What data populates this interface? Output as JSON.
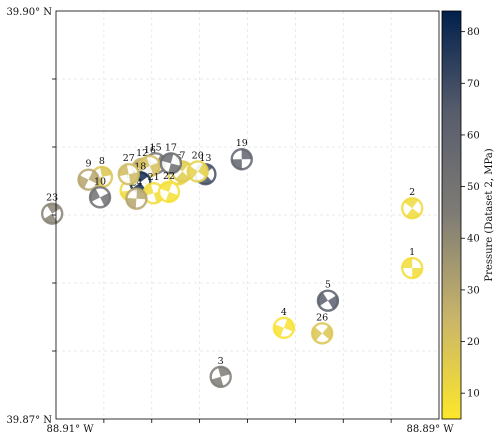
{
  "chart_data": {
    "type": "scatter",
    "subtype": "focal-mechanism beachballs",
    "title": "",
    "xlabel": "",
    "ylabel": "",
    "x_ticks": [
      {
        "value": -88.91,
        "label": "88.91° W"
      },
      {
        "value": -88.89,
        "label": "88.89° W"
      }
    ],
    "y_ticks": [
      {
        "value": 39.87,
        "label": "39.87° N"
      },
      {
        "value": 39.9,
        "label": "39.90° N"
      }
    ],
    "xlim": [
      -88.91,
      -88.89
    ],
    "ylim": [
      39.87,
      39.9
    ],
    "grid": true,
    "colorbar": {
      "label": "Pressure (Dataset 2, MPa)",
      "range": [
        5,
        84
      ],
      "ticks": [
        10,
        20,
        30,
        40,
        50,
        60,
        70,
        80
      ],
      "colormap": [
        "#fde72b",
        "#c8b46a",
        "#7f7c75",
        "#585d6c",
        "#00204c"
      ]
    },
    "points": [
      {
        "id": "1",
        "lon": -88.8914,
        "lat": 39.8811,
        "pressure": 9
      },
      {
        "id": "2",
        "lon": -88.8914,
        "lat": 39.8855,
        "pressure": 10
      },
      {
        "id": "3",
        "lon": -88.9014,
        "lat": 39.8731,
        "pressure": 45
      },
      {
        "id": "4",
        "lon": -88.8981,
        "lat": 39.8767,
        "pressure": 7
      },
      {
        "id": "5",
        "lon": -88.8958,
        "lat": 39.8787,
        "pressure": 63
      },
      {
        "id": "6",
        "lon": -88.9036,
        "lat": 39.888,
        "pressure": 12
      },
      {
        "id": "7",
        "lon": -88.9034,
        "lat": 39.8882,
        "pressure": 16
      },
      {
        "id": "8",
        "lon": -88.9076,
        "lat": 39.8878,
        "pressure": 18
      },
      {
        "id": "9",
        "lon": -88.9083,
        "lat": 39.8876,
        "pressure": 30
      },
      {
        "id": "10",
        "lon": -88.9077,
        "lat": 39.8863,
        "pressure": 52
      },
      {
        "id": "12",
        "lon": -88.9055,
        "lat": 39.8884,
        "pressure": 25
      },
      {
        "id": "13",
        "lon": -88.9022,
        "lat": 39.888,
        "pressure": 68
      },
      {
        "id": "14",
        "lon": -88.9061,
        "lat": 39.8868,
        "pressure": 10
      },
      {
        "id": "15",
        "lon": -88.9048,
        "lat": 39.8888,
        "pressure": 48
      },
      {
        "id": "16",
        "lon": -88.9051,
        "lat": 39.8886,
        "pressure": 20
      },
      {
        "id": "17",
        "lon": -88.904,
        "lat": 39.8888,
        "pressure": 55
      },
      {
        "id": "18",
        "lon": -88.9056,
        "lat": 39.8874,
        "pressure": 80
      },
      {
        "id": "19",
        "lon": -88.9003,
        "lat": 39.8891,
        "pressure": 60
      },
      {
        "id": "20",
        "lon": -88.9026,
        "lat": 39.8882,
        "pressure": 14
      },
      {
        "id": "21",
        "lon": -88.9049,
        "lat": 39.8866,
        "pressure": 9
      },
      {
        "id": "22",
        "lon": -88.9041,
        "lat": 39.8867,
        "pressure": 8
      },
      {
        "id": "23",
        "lon": -88.9102,
        "lat": 39.8851,
        "pressure": 42
      },
      {
        "id": "24",
        "lon": -88.9058,
        "lat": 39.8862,
        "pressure": 30
      },
      {
        "id": "26",
        "lon": -88.8961,
        "lat": 39.8763,
        "pressure": 18
      },
      {
        "id": "27",
        "lon": -88.9062,
        "lat": 39.888,
        "pressure": 22
      }
    ]
  }
}
